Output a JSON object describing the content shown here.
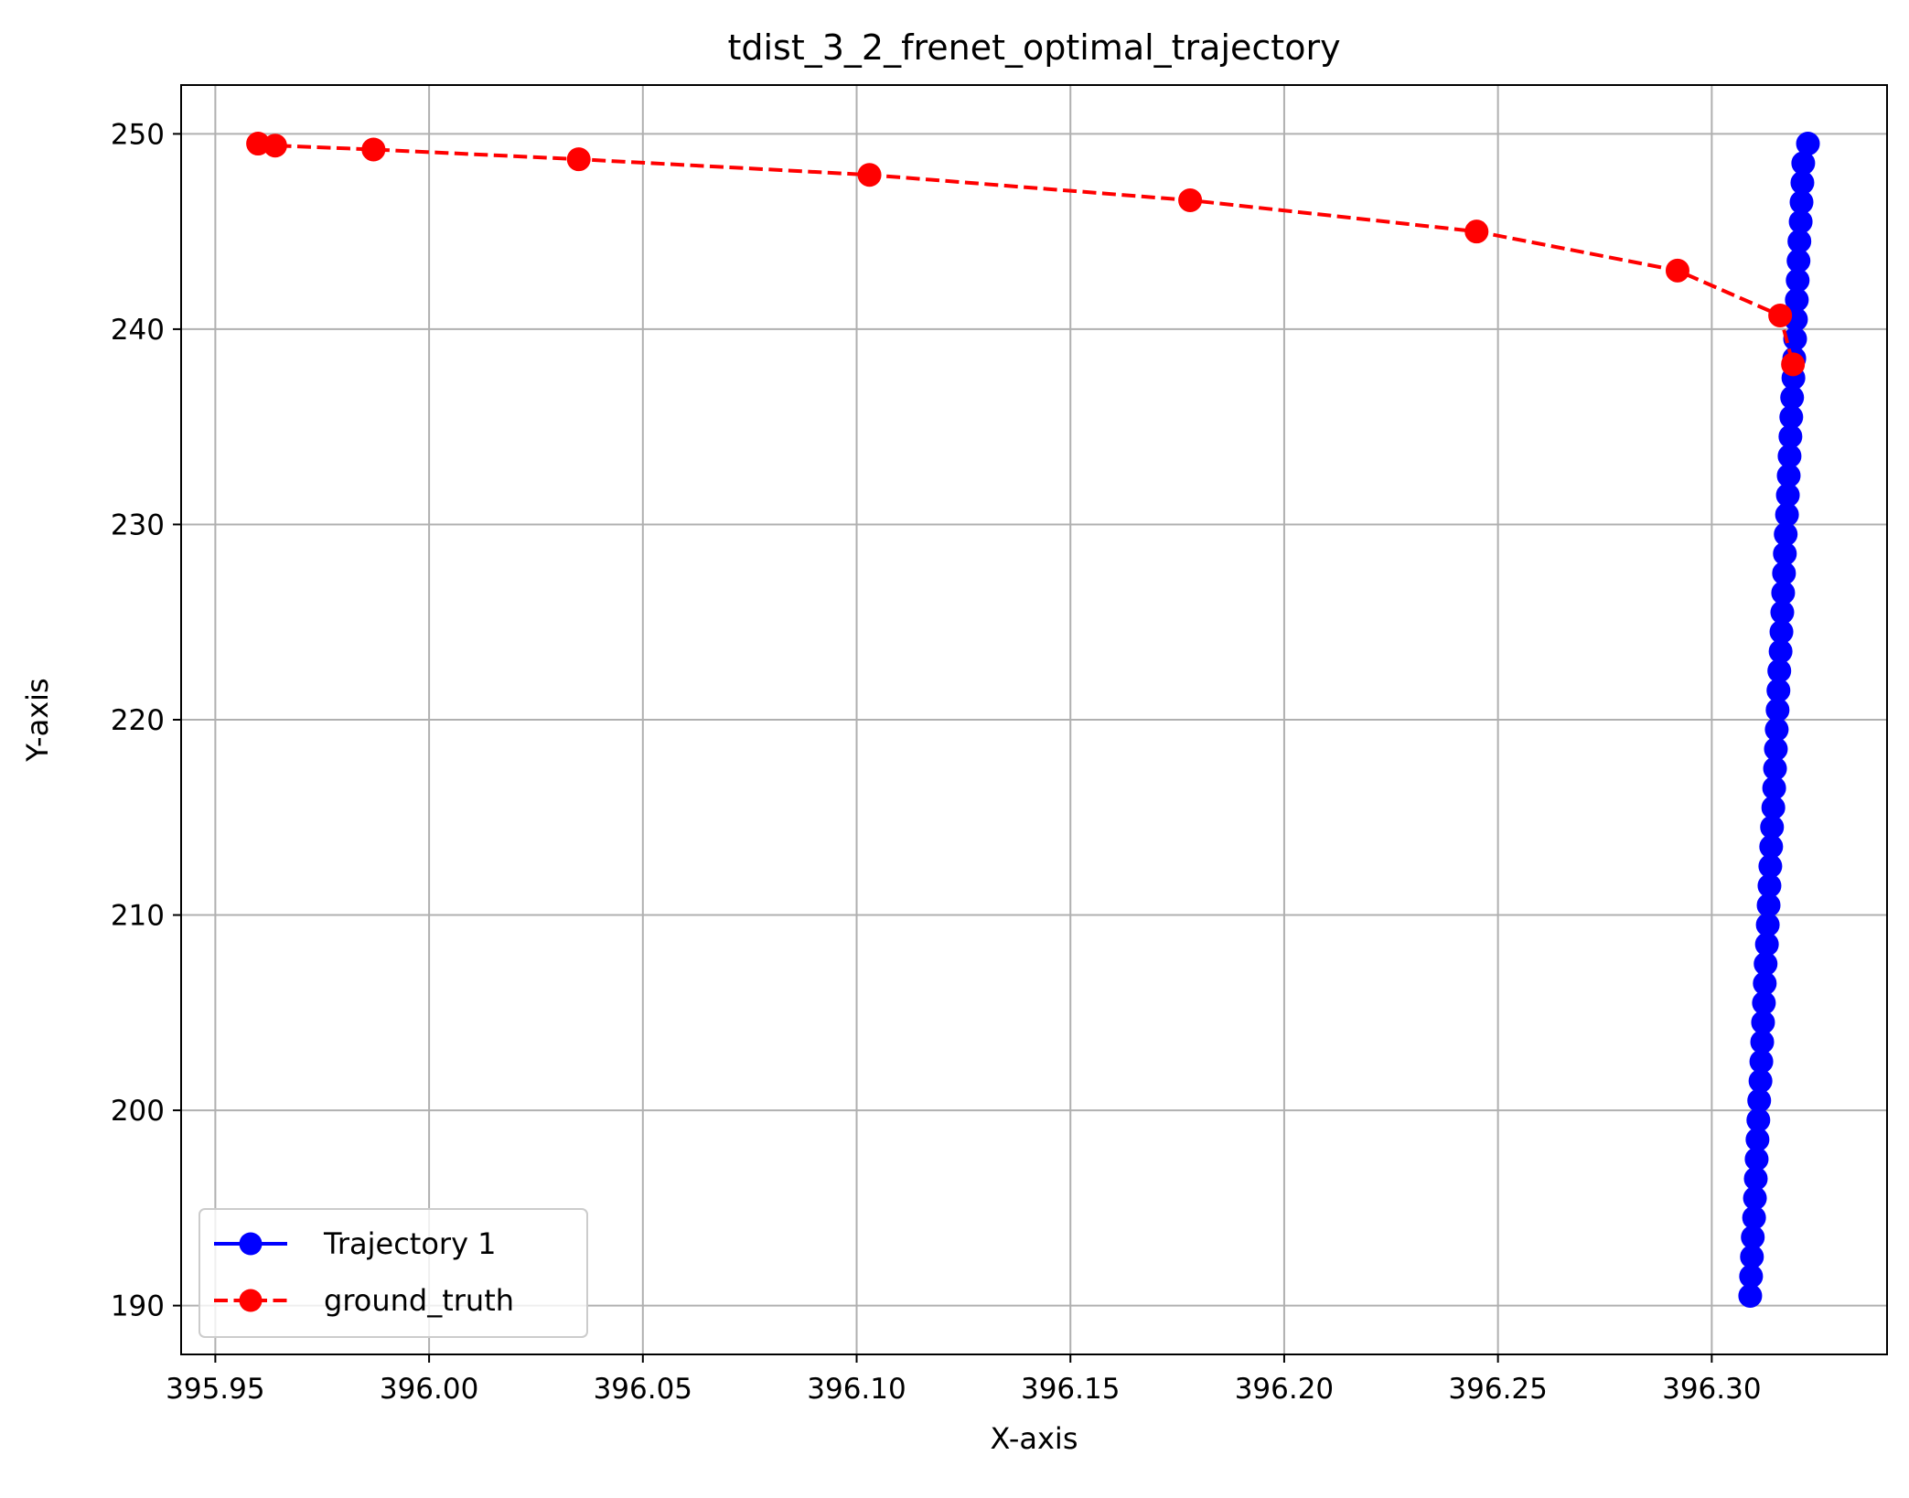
{
  "chart_data": {
    "type": "line",
    "title": "tdist_3_2_frenet_optimal_trajectory",
    "xlabel": "X-axis",
    "ylabel": "Y-axis",
    "xlim": [
      395.942,
      396.341
    ],
    "ylim": [
      187.5,
      252.5
    ],
    "grid": true,
    "legend_position": "lower-left",
    "x_ticks": [
      395.95,
      396.0,
      396.05,
      396.1,
      396.15,
      396.2,
      396.25,
      396.3
    ],
    "x_tick_labels": [
      "395.95",
      "396.00",
      "396.05",
      "396.10",
      "396.15",
      "396.20",
      "396.25",
      "396.30"
    ],
    "y_ticks": [
      190,
      200,
      210,
      220,
      230,
      240,
      250
    ],
    "y_tick_labels": [
      "190",
      "200",
      "210",
      "220",
      "230",
      "240",
      "250"
    ],
    "series": [
      {
        "name": "Trajectory 1",
        "color": "#0000ff",
        "line_style": "solid",
        "marker": "circle",
        "points": [
          {
            "x": 396.309,
            "y": 190.5
          },
          {
            "x": 396.3092,
            "y": 191.5
          },
          {
            "x": 396.3094,
            "y": 192.5
          },
          {
            "x": 396.3096,
            "y": 193.5
          },
          {
            "x": 396.3099,
            "y": 194.5
          },
          {
            "x": 396.3101,
            "y": 195.5
          },
          {
            "x": 396.3103,
            "y": 196.5
          },
          {
            "x": 396.3105,
            "y": 197.5
          },
          {
            "x": 396.3107,
            "y": 198.5
          },
          {
            "x": 396.3109,
            "y": 199.5
          },
          {
            "x": 396.3111,
            "y": 200.5
          },
          {
            "x": 396.3114,
            "y": 201.5
          },
          {
            "x": 396.3116,
            "y": 202.5
          },
          {
            "x": 396.3118,
            "y": 203.5
          },
          {
            "x": 396.312,
            "y": 204.5
          },
          {
            "x": 396.3122,
            "y": 205.5
          },
          {
            "x": 396.3124,
            "y": 206.5
          },
          {
            "x": 396.3126,
            "y": 207.5
          },
          {
            "x": 396.3129,
            "y": 208.5
          },
          {
            "x": 396.3131,
            "y": 209.5
          },
          {
            "x": 396.3133,
            "y": 210.5
          },
          {
            "x": 396.3135,
            "y": 211.5
          },
          {
            "x": 396.3137,
            "y": 212.5
          },
          {
            "x": 396.3139,
            "y": 213.5
          },
          {
            "x": 396.3141,
            "y": 214.5
          },
          {
            "x": 396.3144,
            "y": 215.5
          },
          {
            "x": 396.3146,
            "y": 216.5
          },
          {
            "x": 396.3148,
            "y": 217.5
          },
          {
            "x": 396.315,
            "y": 218.5
          },
          {
            "x": 396.3152,
            "y": 219.5
          },
          {
            "x": 396.3154,
            "y": 220.5
          },
          {
            "x": 396.3156,
            "y": 221.5
          },
          {
            "x": 396.3158,
            "y": 222.5
          },
          {
            "x": 396.3161,
            "y": 223.5
          },
          {
            "x": 396.3163,
            "y": 224.5
          },
          {
            "x": 396.3165,
            "y": 225.5
          },
          {
            "x": 396.3167,
            "y": 226.5
          },
          {
            "x": 396.3169,
            "y": 227.5
          },
          {
            "x": 396.3171,
            "y": 228.5
          },
          {
            "x": 396.3173,
            "y": 229.5
          },
          {
            "x": 396.3176,
            "y": 230.5
          },
          {
            "x": 396.3178,
            "y": 231.5
          },
          {
            "x": 396.318,
            "y": 232.5
          },
          {
            "x": 396.3182,
            "y": 233.5
          },
          {
            "x": 396.3184,
            "y": 234.5
          },
          {
            "x": 396.3186,
            "y": 235.5
          },
          {
            "x": 396.3188,
            "y": 236.5
          },
          {
            "x": 396.3191,
            "y": 237.5
          },
          {
            "x": 396.3193,
            "y": 238.5
          },
          {
            "x": 396.3195,
            "y": 239.5
          },
          {
            "x": 396.3197,
            "y": 240.5
          },
          {
            "x": 396.3199,
            "y": 241.5
          },
          {
            "x": 396.3201,
            "y": 242.5
          },
          {
            "x": 396.3203,
            "y": 243.5
          },
          {
            "x": 396.3205,
            "y": 244.5
          },
          {
            "x": 396.3208,
            "y": 245.5
          },
          {
            "x": 396.321,
            "y": 246.5
          },
          {
            "x": 396.3212,
            "y": 247.5
          },
          {
            "x": 396.3214,
            "y": 248.5
          },
          {
            "x": 396.3225,
            "y": 249.5
          }
        ]
      },
      {
        "name": "ground_truth",
        "color": "#ff0000",
        "line_style": "dashed",
        "marker": "circle",
        "points": [
          {
            "x": 395.96,
            "y": 249.5
          },
          {
            "x": 395.964,
            "y": 249.4
          },
          {
            "x": 395.987,
            "y": 249.2
          },
          {
            "x": 396.035,
            "y": 248.7
          },
          {
            "x": 396.103,
            "y": 247.9
          },
          {
            "x": 396.178,
            "y": 246.6
          },
          {
            "x": 396.245,
            "y": 245.0
          },
          {
            "x": 396.292,
            "y": 243.0
          },
          {
            "x": 396.316,
            "y": 240.7
          },
          {
            "x": 396.319,
            "y": 238.2
          }
        ]
      }
    ]
  }
}
